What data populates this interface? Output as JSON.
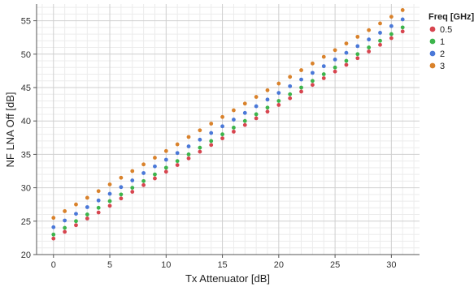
{
  "chart_data": {
    "type": "scatter",
    "xlabel": "Tx Attenuator [dB]",
    "ylabel": "NF LNA Off [dB]",
    "xlim": [
      -1.5,
      32.5
    ],
    "ylim": [
      20,
      57.5
    ],
    "x_ticks": [
      0,
      5,
      10,
      15,
      20,
      25,
      30
    ],
    "y_ticks": [
      20,
      25,
      30,
      35,
      40,
      45,
      50,
      55
    ],
    "grid": true,
    "legend": {
      "title": "Freq [GHz]",
      "placement": "right"
    },
    "x": [
      0,
      1,
      2,
      3,
      4,
      5,
      6,
      7,
      8,
      9,
      10,
      11,
      12,
      13,
      14,
      15,
      16,
      17,
      18,
      19,
      20,
      21,
      22,
      23,
      24,
      25,
      26,
      27,
      28,
      29,
      30,
      31
    ],
    "series": [
      {
        "name": "0.5",
        "color": "#d7454f",
        "values": [
          22.4,
          23.4,
          24.4,
          25.4,
          26.3,
          27.3,
          28.4,
          29.4,
          30.4,
          31.4,
          32.4,
          33.4,
          34.4,
          35.4,
          36.4,
          37.4,
          38.4,
          39.4,
          40.4,
          41.4,
          42.4,
          43.4,
          44.4,
          45.4,
          46.4,
          47.4,
          48.4,
          49.4,
          50.4,
          51.4,
          52.4,
          53.4
        ]
      },
      {
        "name": "1",
        "color": "#3cb44b",
        "values": [
          23.0,
          24.0,
          25.0,
          26.0,
          27.0,
          28.0,
          29.0,
          30.0,
          31.0,
          32.0,
          33.0,
          34.0,
          35.0,
          36.0,
          37.0,
          38.0,
          39.0,
          40.0,
          41.0,
          42.0,
          43.0,
          44.0,
          45.0,
          46.0,
          47.0,
          48.0,
          49.0,
          50.0,
          51.0,
          52.0,
          53.0,
          54.0
        ]
      },
      {
        "name": "2",
        "color": "#4a78d8",
        "values": [
          24.1,
          25.1,
          26.1,
          27.1,
          28.1,
          29.1,
          30.1,
          31.1,
          32.2,
          33.2,
          34.2,
          35.2,
          36.2,
          37.2,
          38.2,
          39.2,
          40.2,
          41.2,
          42.2,
          43.2,
          44.2,
          45.2,
          46.2,
          47.2,
          48.2,
          49.2,
          50.2,
          51.2,
          52.2,
          53.2,
          54.2,
          55.2
        ]
      },
      {
        "name": "3",
        "color": "#d9822b",
        "values": [
          25.5,
          26.5,
          27.5,
          28.5,
          29.5,
          30.5,
          31.5,
          32.5,
          33.5,
          34.5,
          35.5,
          36.5,
          37.6,
          38.6,
          39.6,
          40.6,
          41.6,
          42.6,
          43.6,
          44.6,
          45.6,
          46.6,
          47.6,
          48.6,
          49.6,
          50.6,
          51.6,
          52.6,
          53.6,
          54.6,
          55.6,
          56.6
        ]
      }
    ]
  }
}
